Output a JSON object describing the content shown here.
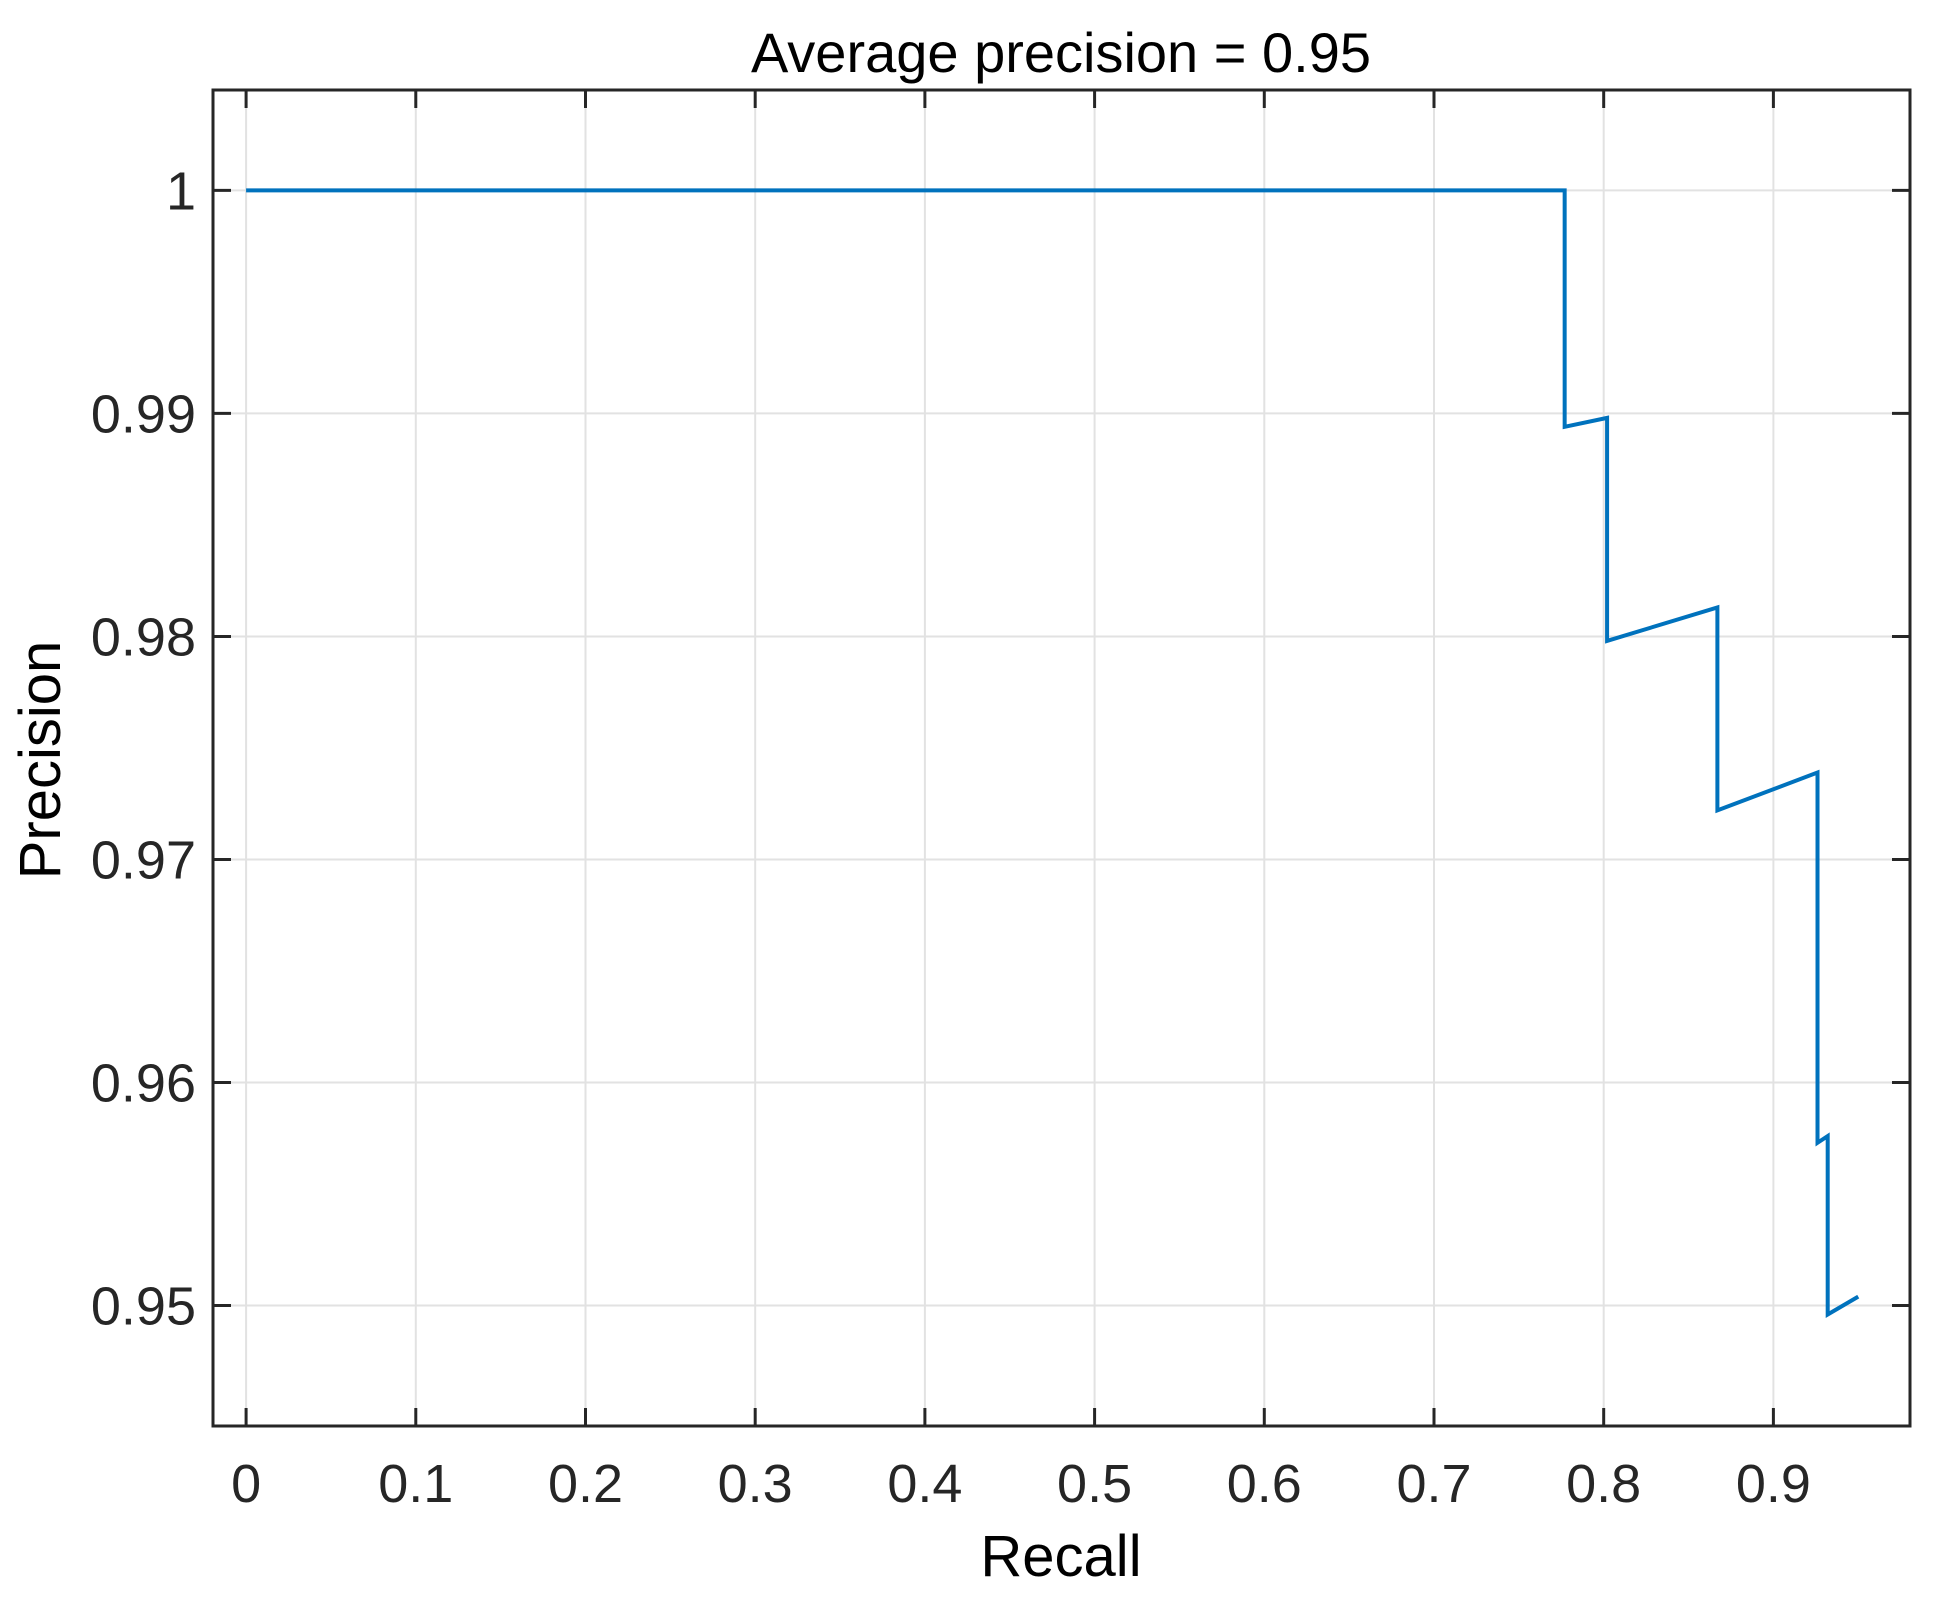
{
  "figure": {
    "background": "#ffffff"
  },
  "chart_data": {
    "type": "line",
    "title": "Average precision = 0.95",
    "xlabel": "Recall",
    "ylabel": "Precision",
    "average_precision": 0.95,
    "xlim": [
      -0.0195,
      0.9805
    ],
    "ylim": [
      0.9446,
      1.0045
    ],
    "grid": true,
    "legend": "none",
    "x_ticks": [
      {
        "value": 0.0,
        "label": "0"
      },
      {
        "value": 0.1,
        "label": "0.1"
      },
      {
        "value": 0.2,
        "label": "0.2"
      },
      {
        "value": 0.3,
        "label": "0.3"
      },
      {
        "value": 0.4,
        "label": "0.4"
      },
      {
        "value": 0.5,
        "label": "0.5"
      },
      {
        "value": 0.6,
        "label": "0.6"
      },
      {
        "value": 0.7,
        "label": "0.7"
      },
      {
        "value": 0.8,
        "label": "0.8"
      },
      {
        "value": 0.9,
        "label": "0.9"
      }
    ],
    "y_ticks": [
      {
        "value": 1.0,
        "label": "1"
      },
      {
        "value": 0.99,
        "label": "0.99"
      },
      {
        "value": 0.98,
        "label": "0.98"
      },
      {
        "value": 0.97,
        "label": "0.97"
      },
      {
        "value": 0.96,
        "label": "0.96"
      },
      {
        "value": 0.95,
        "label": "0.95"
      }
    ],
    "series": [
      {
        "name": "precision-recall-curve",
        "color": "#0072BD",
        "points": [
          [
            0.0,
            1.0
          ],
          [
            0.777,
            1.0
          ],
          [
            0.777,
            0.9894
          ],
          [
            0.802,
            0.9898
          ],
          [
            0.802,
            0.9798
          ],
          [
            0.867,
            0.9813
          ],
          [
            0.867,
            0.9722
          ],
          [
            0.926,
            0.9739
          ],
          [
            0.926,
            0.9573
          ],
          [
            0.932,
            0.9576
          ],
          [
            0.932,
            0.9496
          ],
          [
            0.95,
            0.9504
          ]
        ]
      }
    ],
    "colors": {
      "grid": "#e2e2e2",
      "axis": "#262626",
      "tick_label": "#262626",
      "text": "#000000"
    }
  }
}
